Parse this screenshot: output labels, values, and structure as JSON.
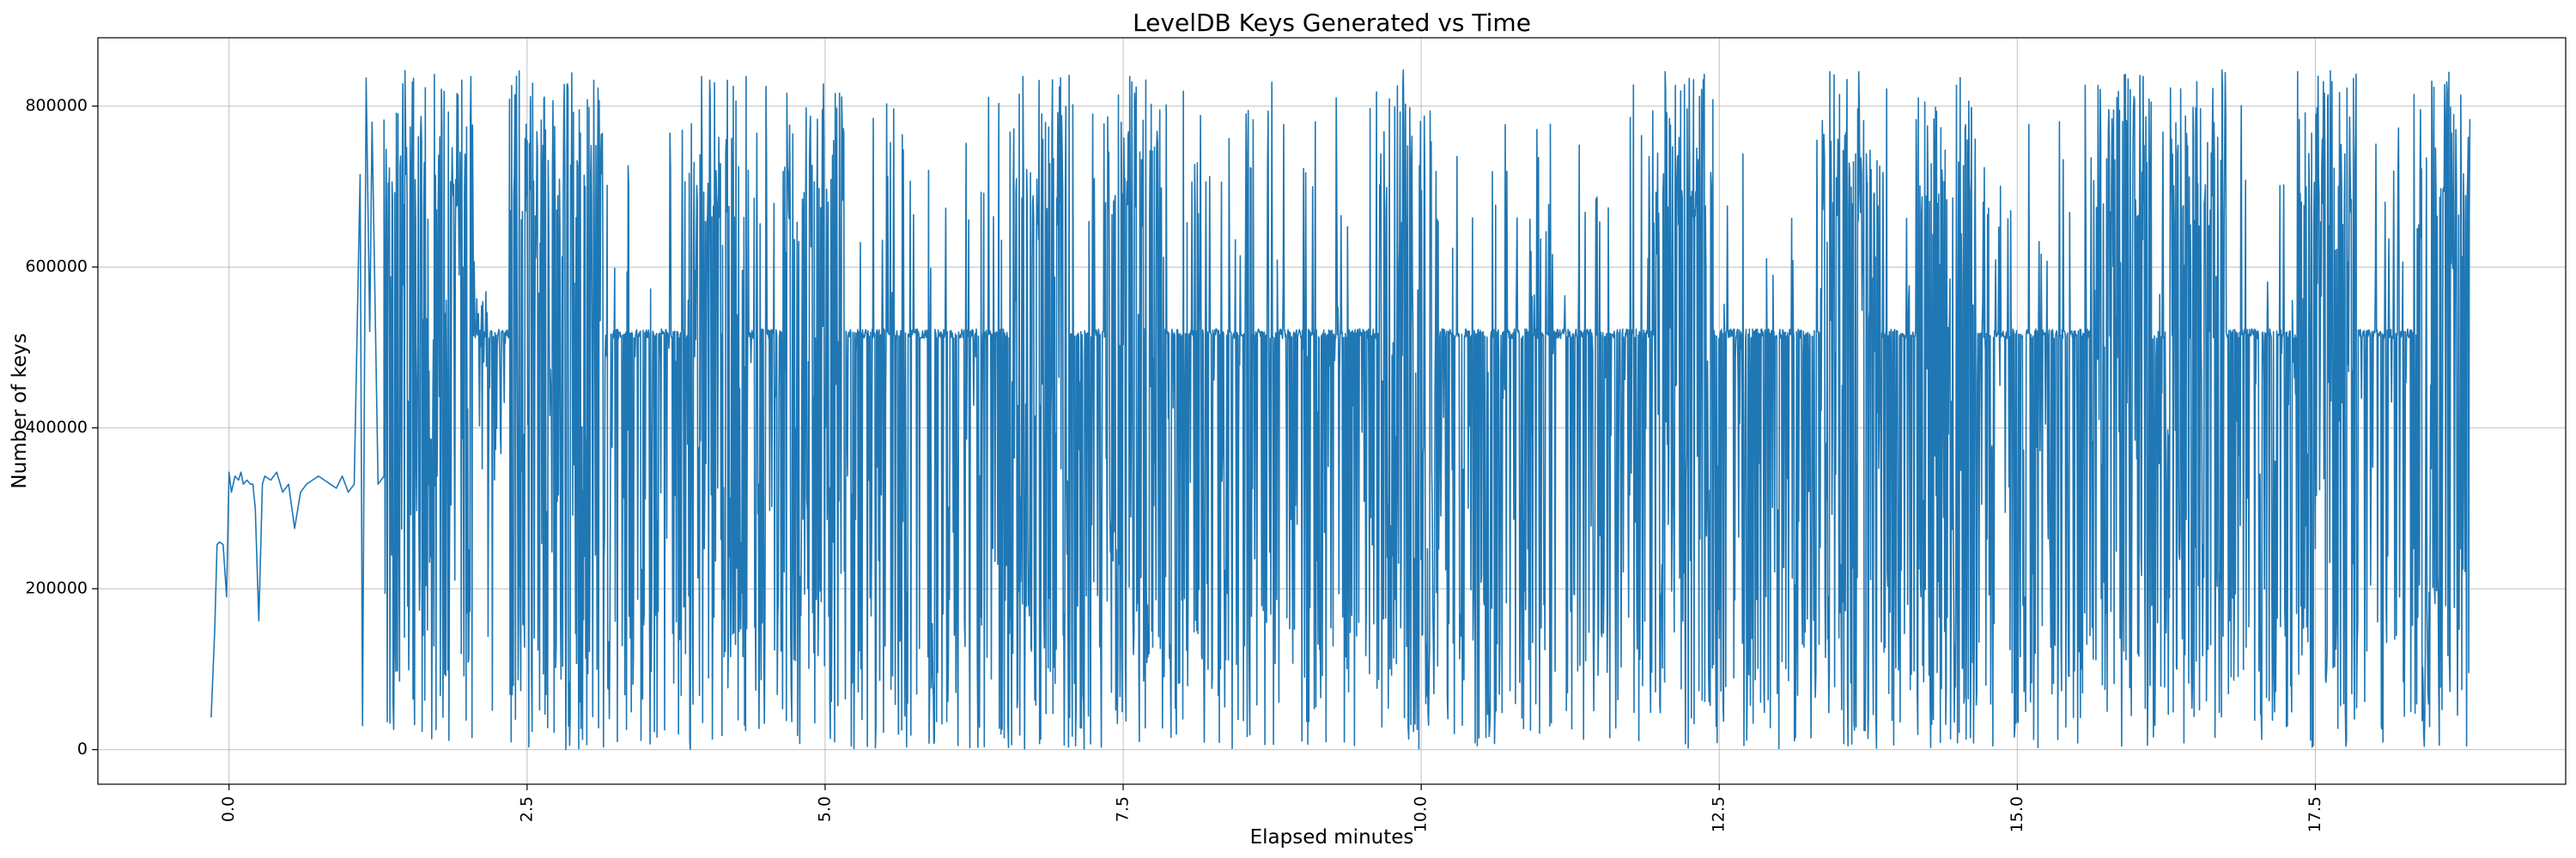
{
  "chart_data": {
    "type": "line",
    "title": "LevelDB Keys Generated vs Time",
    "xlabel": "Elapsed minutes",
    "ylabel": "Number of keys",
    "xlim": [
      -1.1,
      19.6
    ],
    "ylim": [
      -43000,
      885000
    ],
    "xticks": [
      0.0,
      2.5,
      5.0,
      7.5,
      10.0,
      12.5,
      15.0,
      17.5
    ],
    "xtick_labels": [
      "0.0",
      "2.5",
      "5.0",
      "7.5",
      "10.0",
      "12.5",
      "15.0",
      "17.5"
    ],
    "yticks": [
      0,
      200000,
      400000,
      600000,
      800000
    ],
    "ytick_labels": [
      "0",
      "200000",
      "400000",
      "600000",
      "800000"
    ],
    "grid": true,
    "line_color": "#1f77b4",
    "series": [
      {
        "name": "keys",
        "x": [
          -0.15,
          -0.12,
          -0.1,
          -0.08,
          -0.05,
          -0.02,
          0.0,
          0.02,
          0.05,
          0.08,
          0.1,
          0.12,
          0.15,
          0.18,
          0.2,
          0.22,
          0.25,
          0.28,
          0.3,
          0.35,
          0.4,
          0.45,
          0.5,
          0.55,
          0.6,
          0.65,
          0.7,
          0.75,
          0.8,
          0.85,
          0.9,
          0.95,
          1.0,
          1.05,
          1.1,
          1.12,
          1.15,
          1.18,
          1.2,
          1.25,
          1.3
        ],
        "values": [
          40000,
          150000,
          255000,
          258000,
          255000,
          190000,
          345000,
          320000,
          340000,
          335000,
          345000,
          330000,
          335000,
          330000,
          330000,
          300000,
          160000,
          330000,
          340000,
          335000,
          345000,
          320000,
          330000,
          275000,
          320000,
          330000,
          335000,
          340000,
          335000,
          330000,
          325000,
          340000,
          320000,
          330000,
          715000,
          30000,
          835000,
          520000,
          780000,
          330000,
          340000
        ]
      }
    ],
    "dense_region": {
      "x_start": 1.3,
      "x_end": 18.8,
      "typical_min": 0,
      "typical_max": 845000,
      "baseline": 517000
    }
  }
}
